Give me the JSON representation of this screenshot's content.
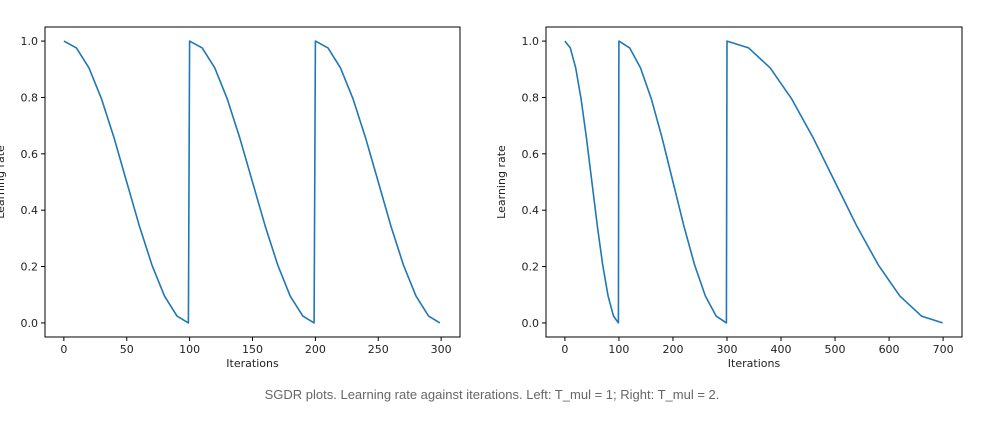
{
  "caption": "SGDR plots. Learning rate against iterations. Left: T_mul = 1; Right: T_mul = 2.",
  "line_color": "#1f77b4",
  "chart_data": [
    {
      "type": "line",
      "title": "",
      "xlabel": "Iterations",
      "ylabel": "Learning rate",
      "xlim": [
        -15,
        315
      ],
      "ylim": [
        -0.05,
        1.05
      ],
      "xticks": [
        0,
        50,
        100,
        150,
        200,
        250,
        300
      ],
      "yticks": [
        0.0,
        0.2,
        0.4,
        0.6,
        0.8,
        1.0
      ],
      "grid": false,
      "series": [
        {
          "x": [
            0,
            10,
            20,
            30,
            40,
            50,
            60,
            70,
            80,
            90,
            99,
            100,
            110,
            120,
            130,
            140,
            150,
            160,
            170,
            180,
            190,
            199,
            200,
            210,
            220,
            230,
            240,
            250,
            260,
            270,
            280,
            290,
            299
          ],
          "values": [
            1.0,
            0.976,
            0.905,
            0.794,
            0.655,
            0.5,
            0.345,
            0.206,
            0.095,
            0.024,
            0.0,
            1.0,
            0.976,
            0.905,
            0.794,
            0.655,
            0.5,
            0.345,
            0.206,
            0.095,
            0.024,
            0.0,
            1.0,
            0.976,
            0.905,
            0.794,
            0.655,
            0.5,
            0.345,
            0.206,
            0.095,
            0.024,
            0.0
          ]
        }
      ]
    },
    {
      "type": "line",
      "title": "",
      "xlabel": "Iterations",
      "ylabel": "Learning rate",
      "xlim": [
        -35,
        735
      ],
      "ylim": [
        -0.05,
        1.05
      ],
      "xticks": [
        0,
        100,
        200,
        300,
        400,
        500,
        600,
        700
      ],
      "yticks": [
        0.0,
        0.2,
        0.4,
        0.6,
        0.8,
        1.0
      ],
      "grid": false,
      "series": [
        {
          "x": [
            0,
            10,
            20,
            30,
            40,
            50,
            60,
            70,
            80,
            90,
            99,
            100,
            120,
            140,
            160,
            180,
            200,
            220,
            240,
            260,
            280,
            299,
            300,
            340,
            380,
            420,
            460,
            500,
            540,
            580,
            620,
            660,
            699
          ],
          "values": [
            1.0,
            0.976,
            0.905,
            0.794,
            0.655,
            0.5,
            0.345,
            0.206,
            0.095,
            0.024,
            0.0,
            1.0,
            0.976,
            0.905,
            0.794,
            0.655,
            0.5,
            0.345,
            0.206,
            0.095,
            0.024,
            0.0,
            1.0,
            0.976,
            0.905,
            0.794,
            0.655,
            0.5,
            0.345,
            0.206,
            0.095,
            0.024,
            0.0
          ]
        }
      ]
    }
  ]
}
